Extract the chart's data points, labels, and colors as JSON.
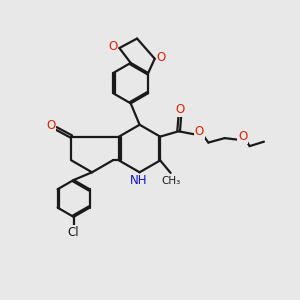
{
  "bg_color": "#e8e8e8",
  "bond_color": "#1a1a1a",
  "o_color": "#dd2200",
  "n_color": "#1111cc",
  "line_width": 1.6,
  "fs": 8.5,
  "fs_small": 7.5,
  "xlim": [
    0,
    10
  ],
  "ylim": [
    0,
    10
  ],
  "dbo": 0.06
}
